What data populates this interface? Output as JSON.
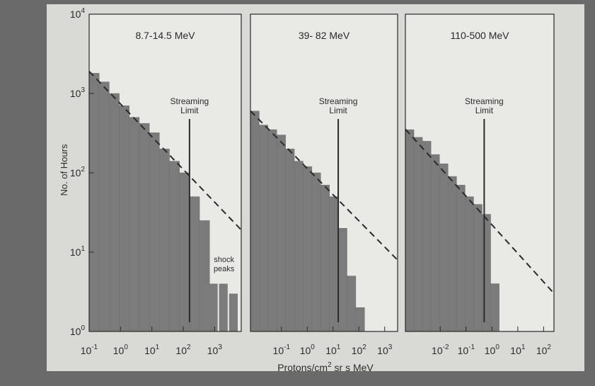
{
  "figure": {
    "y_axis_label": "No. of Hours",
    "x_axis_label_prefix": "Protons/cm",
    "x_axis_label_sup": "2",
    "x_axis_label_suffix": " sr s MeV",
    "streaming_limit_line1": "Streaming",
    "streaming_limit_line2": "Limit",
    "shock_peaks_line1": "shock",
    "shock_peaks_line2": "peaks"
  },
  "colors": {
    "background": "#6a6a6a",
    "plot_area": "#e9e9e6",
    "bar_fill": "#7b7b7b",
    "bar_stroke": "#6e6e6e",
    "text": "#2a2a2a"
  },
  "chart_data": [
    {
      "type": "bar",
      "panel_title": "8.7-14.5 MeV",
      "xscale": "log",
      "yscale": "log",
      "xlim_log10": [
        -1,
        3.85
      ],
      "ylim_log10": [
        0,
        4
      ],
      "y_ticks": [
        {
          "base": "10",
          "exp": "0",
          "log": 0
        },
        {
          "base": "10",
          "exp": "1",
          "log": 1
        },
        {
          "base": "10",
          "exp": "2",
          "log": 2
        },
        {
          "base": "10",
          "exp": "3",
          "log": 3
        },
        {
          "base": "10",
          "exp": "4",
          "log": 4
        }
      ],
      "x_ticks": [
        {
          "base": "10",
          "exp": "-1",
          "log": -1
        },
        {
          "base": "10",
          "exp": "0",
          "log": 0
        },
        {
          "base": "10",
          "exp": "1",
          "log": 1
        },
        {
          "base": "10",
          "exp": "2",
          "log": 2
        },
        {
          "base": "10",
          "exp": "3",
          "log": 3
        }
      ],
      "bins_log10_edges": [
        -1,
        -0.68,
        -0.36,
        -0.04,
        0.28,
        0.6,
        0.92,
        1.24,
        1.56,
        1.88,
        2.2,
        2.52,
        2.84
      ],
      "bin_counts": [
        1800,
        1400,
        1000,
        700,
        500,
        420,
        320,
        200,
        140,
        100,
        50,
        25
      ],
      "shock_peak_bins_log10_edges": [
        2.8,
        3.12,
        3.44,
        3.76
      ],
      "shock_peak_counts": [
        4,
        4,
        3
      ],
      "streaming_limit_x_log10": 2.2,
      "dashed_fit_log10": {
        "x": [
          -1,
          3.85
        ],
        "y": [
          3.28,
          1.28
        ]
      }
    },
    {
      "type": "bar",
      "panel_title": "39- 82 MeV",
      "xscale": "log",
      "yscale": "log",
      "xlim_log10": [
        -2.2,
        3.5
      ],
      "ylim_log10": [
        0,
        4
      ],
      "x_ticks": [
        {
          "base": "10",
          "exp": "-1",
          "log": -1
        },
        {
          "base": "10",
          "exp": "0",
          "log": 0
        },
        {
          "base": "10",
          "exp": "1",
          "log": 1
        },
        {
          "base": "10",
          "exp": "2",
          "log": 2
        },
        {
          "base": "10",
          "exp": "3",
          "log": 3
        }
      ],
      "bins_log10_edges": [
        -2.2,
        -1.86,
        -1.52,
        -1.18,
        -0.84,
        -0.5,
        -0.16,
        0.18,
        0.52,
        0.86,
        1.2,
        1.54,
        1.88,
        2.22
      ],
      "bin_counts": [
        600,
        400,
        350,
        300,
        200,
        140,
        120,
        100,
        70,
        50,
        20,
        5,
        2
      ],
      "streaming_limit_x_log10": 1.2,
      "dashed_fit_log10": {
        "x": [
          -2.2,
          3.5
        ],
        "y": [
          2.78,
          0.9
        ]
      }
    },
    {
      "type": "bar",
      "panel_title": "110-500 MeV",
      "xscale": "log",
      "yscale": "log",
      "xlim_log10": [
        -3.35,
        2.4
      ],
      "ylim_log10": [
        0,
        4
      ],
      "x_ticks": [
        {
          "base": "10",
          "exp": "-2",
          "log": -2
        },
        {
          "base": "10",
          "exp": "-1",
          "log": -1
        },
        {
          "base": "10",
          "exp": "0",
          "log": 0
        },
        {
          "base": "10",
          "exp": "1",
          "log": 1
        },
        {
          "base": "10",
          "exp": "2",
          "log": 2
        }
      ],
      "bins_log10_edges": [
        -3.35,
        -3.02,
        -2.69,
        -2.36,
        -2.03,
        -1.7,
        -1.37,
        -1.04,
        -0.71,
        -0.38,
        -0.05,
        0.28
      ],
      "bin_counts": [
        350,
        280,
        250,
        170,
        130,
        90,
        70,
        50,
        40,
        30,
        4
      ],
      "streaming_limit_x_log10": -0.3,
      "dashed_fit_log10": {
        "x": [
          -3.35,
          2.4
        ],
        "y": [
          2.55,
          0.48
        ]
      }
    }
  ]
}
